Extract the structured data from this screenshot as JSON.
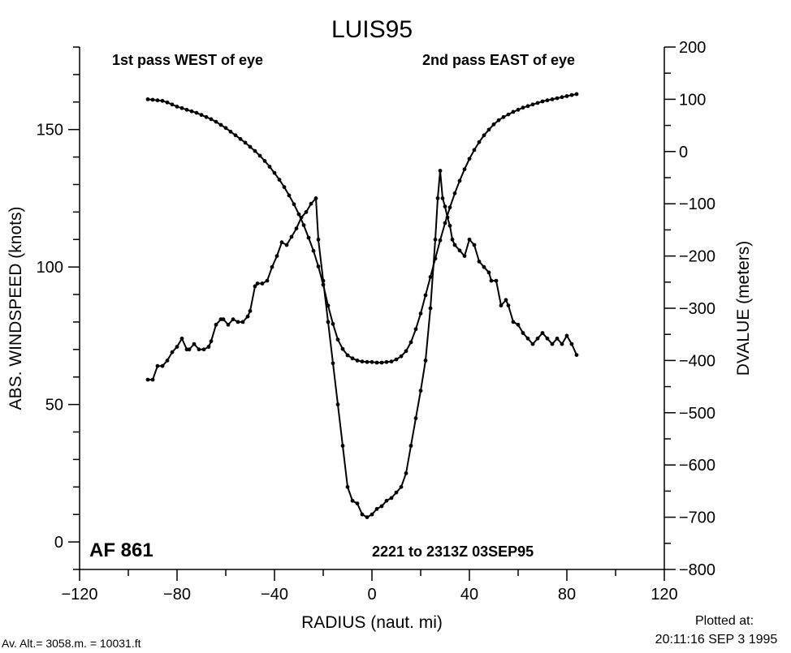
{
  "chart_data": {
    "type": "line",
    "title": "LUIS95",
    "annotations": {
      "top_left": "1st pass WEST of eye",
      "top_right": "2nd pass EAST of eye",
      "bottom_left": "AF 861",
      "bottom_right": "2221 to 2313Z 03SEP95",
      "footer_left": "Av. Alt.= 3058.m. = 10031.ft",
      "plotted_label": "Plotted at:",
      "plotted_time": "20:11:16 SEP  3 1995"
    },
    "xlabel": "RADIUS (naut. mi)",
    "ylabel_left": "ABS. WINDSPEED (knots)",
    "ylabel_right": "DVALUE (meters)",
    "xlim": [
      -120,
      120
    ],
    "ylim_left": [
      -10,
      180
    ],
    "ylim_right": [
      -800,
      200
    ],
    "x_ticks": [
      "−120",
      "−80",
      "−40",
      "0",
      "40",
      "80",
      "120"
    ],
    "y_left_ticks": [
      "0",
      "50",
      "100",
      "150"
    ],
    "y_right_ticks": [
      "200",
      "100",
      "0",
      "−100",
      "−200",
      "−300",
      "−400",
      "−500",
      "−600",
      "−700",
      "−800"
    ],
    "grid": false,
    "series": [
      {
        "axis": "left",
        "x": [
          -92,
          -90,
          -88,
          -86,
          -84,
          -82,
          -80,
          -78,
          -76,
          -75,
          -73,
          -71,
          -69,
          -67,
          -66,
          -64,
          -62,
          -61,
          -59,
          -57,
          -55,
          -53,
          -51,
          -50,
          -48,
          -47,
          -45,
          -43,
          -41,
          -39,
          -37,
          -35,
          -33,
          -31,
          -29,
          -27,
          -25,
          -23,
          -22,
          -20,
          -18,
          -16,
          -14,
          -12,
          -10,
          -8,
          -6,
          -4,
          -2,
          0,
          2,
          4,
          6,
          8,
          10,
          12,
          14,
          16,
          18,
          20,
          22,
          24,
          26,
          27,
          28,
          29,
          30,
          31,
          32,
          33,
          34,
          36,
          38,
          40,
          42,
          44,
          46,
          48,
          49,
          51,
          53,
          55,
          56,
          58,
          60,
          62,
          64,
          66,
          68,
          70,
          72,
          74,
          76,
          78,
          80,
          82,
          84
        ],
        "y": [
          59,
          59,
          64,
          64,
          66,
          69,
          71,
          74,
          70,
          70,
          72,
          70,
          70,
          71,
          73,
          79,
          81,
          81,
          79,
          81,
          80,
          80,
          82,
          84,
          93,
          94,
          94,
          95,
          100,
          104,
          109,
          108,
          111,
          114,
          118,
          120,
          123,
          125,
          110,
          95,
          80,
          65,
          50,
          35,
          20,
          15,
          14,
          10,
          9,
          10,
          12,
          13,
          15,
          16,
          18,
          20,
          25,
          35,
          45,
          55,
          66,
          85,
          110,
          125,
          135,
          125,
          122,
          118,
          115,
          110,
          108,
          106,
          104,
          110,
          108,
          102,
          100,
          98,
          95,
          95,
          86,
          88,
          86,
          80,
          79,
          76,
          74,
          72,
          74,
          76,
          74,
          72,
          74,
          72,
          75,
          72,
          68
        ]
      },
      {
        "axis": "right",
        "x": [
          -92,
          -90,
          -88,
          -86,
          -84,
          -82,
          -80,
          -78,
          -76,
          -74,
          -72,
          -70,
          -68,
          -66,
          -64,
          -62,
          -60,
          -58,
          -56,
          -54,
          -52,
          -50,
          -48,
          -46,
          -44,
          -42,
          -40,
          -38,
          -36,
          -34,
          -32,
          -30,
          -28,
          -26,
          -24,
          -22,
          -20,
          -18,
          -16,
          -14,
          -12,
          -10,
          -8,
          -6,
          -4,
          -2,
          0,
          2,
          4,
          6,
          8,
          10,
          12,
          14,
          16,
          18,
          20,
          22,
          24,
          26,
          28,
          30,
          32,
          34,
          36,
          38,
          40,
          42,
          44,
          46,
          48,
          50,
          52,
          54,
          56,
          58,
          60,
          62,
          64,
          66,
          68,
          70,
          72,
          74,
          76,
          78,
          80,
          82,
          84
        ],
        "y": [
          100,
          99,
          98,
          97,
          94,
          90,
          86,
          83,
          80,
          77,
          74,
          70,
          66,
          62,
          57,
          51,
          45,
          38,
          31,
          24,
          17,
          9,
          1,
          -8,
          -18,
          -29,
          -41,
          -54,
          -68,
          -84,
          -101,
          -120,
          -141,
          -165,
          -190,
          -220,
          -255,
          -295,
          -330,
          -360,
          -378,
          -390,
          -396,
          -400,
          -402,
          -403,
          -403,
          -404,
          -404,
          -403,
          -402,
          -398,
          -392,
          -382,
          -365,
          -340,
          -310,
          -275,
          -240,
          -205,
          -170,
          -137,
          -107,
          -80,
          -56,
          -34,
          -14,
          3,
          18,
          31,
          42,
          52,
          60,
          66,
          71,
          76,
          80,
          84,
          87,
          90,
          93,
          96,
          98,
          100,
          102,
          104,
          106,
          108,
          110
        ]
      }
    ]
  }
}
